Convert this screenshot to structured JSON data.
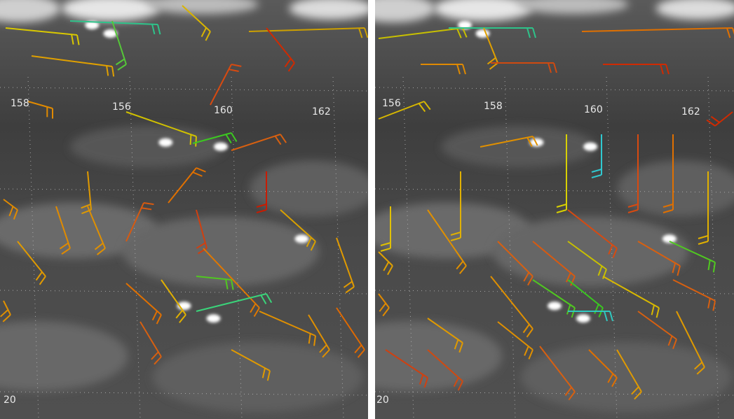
{
  "panels": [
    {
      "longitude_labels": [
        "158",
        "156",
        "160",
        "162"
      ],
      "latitude_label": "20"
    },
    {
      "longitude_labels": [
        "156",
        "158",
        "160",
        "162"
      ],
      "latitude_label": "20"
    }
  ]
}
